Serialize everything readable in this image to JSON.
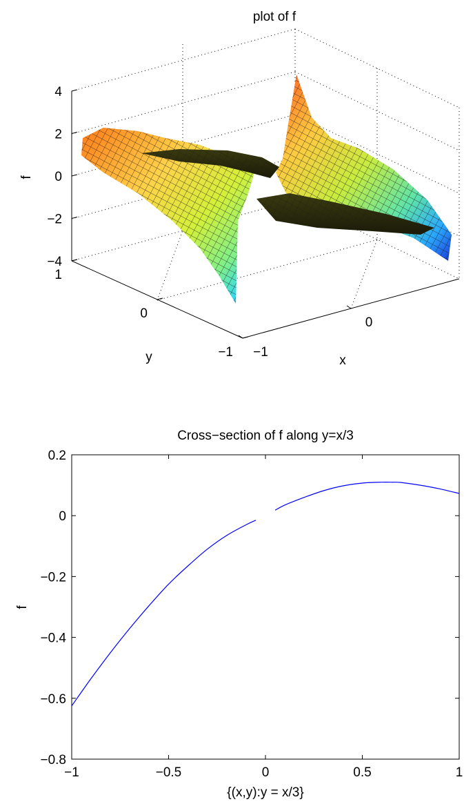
{
  "chart_data": [
    {
      "type": "surface",
      "title": "plot of f",
      "xlabel": "x",
      "ylabel": "y",
      "zlabel": "f",
      "x_ticks": [
        "−1",
        "0"
      ],
      "y_ticks": [
        "1",
        "0",
        "−1"
      ],
      "z_ticks": [
        "4",
        "2",
        "0",
        "−2",
        "−4"
      ],
      "xlim": [
        -1,
        1
      ],
      "ylim": [
        -1,
        1
      ],
      "zlim": [
        -4,
        4
      ],
      "colormap": "jet",
      "grid": true
    },
    {
      "type": "line",
      "title": "Cross−section of f along y=x/3",
      "xlabel": "{(x,y):y = x/3}",
      "ylabel": "f",
      "xlim": [
        -1,
        1
      ],
      "ylim": [
        -0.8,
        0.2
      ],
      "x_ticks": [
        -1,
        -0.5,
        0,
        0.5,
        1
      ],
      "x_tick_labels": [
        "−1",
        "−0.5",
        "0",
        "0.5",
        "1"
      ],
      "y_ticks": [
        -0.8,
        -0.6,
        -0.4,
        -0.2,
        0,
        0.2
      ],
      "y_tick_labels": [
        "−0.8",
        "−0.6",
        "−0.4",
        "−0.2",
        "0",
        "0.2"
      ],
      "line_color": "#0000ff",
      "series": [
        {
          "segments": [
            {
              "x": [
                -1.0,
                -0.9,
                -0.8,
                -0.7,
                -0.6,
                -0.5,
                -0.4,
                -0.3,
                -0.2,
                -0.1,
                -0.05
              ],
              "y": [
                -0.625,
                -0.535,
                -0.45,
                -0.37,
                -0.295,
                -0.225,
                -0.165,
                -0.11,
                -0.065,
                -0.03,
                -0.015
              ]
            },
            {
              "x": [
                0.05,
                0.1,
                0.2,
                0.3,
                0.4,
                0.5,
                0.6,
                0.65,
                0.7,
                0.8,
                0.9,
                1.0
              ],
              "y": [
                0.018,
                0.035,
                0.06,
                0.082,
                0.098,
                0.107,
                0.11,
                0.11,
                0.109,
                0.1,
                0.088,
                0.073
              ]
            }
          ]
        }
      ]
    }
  ]
}
